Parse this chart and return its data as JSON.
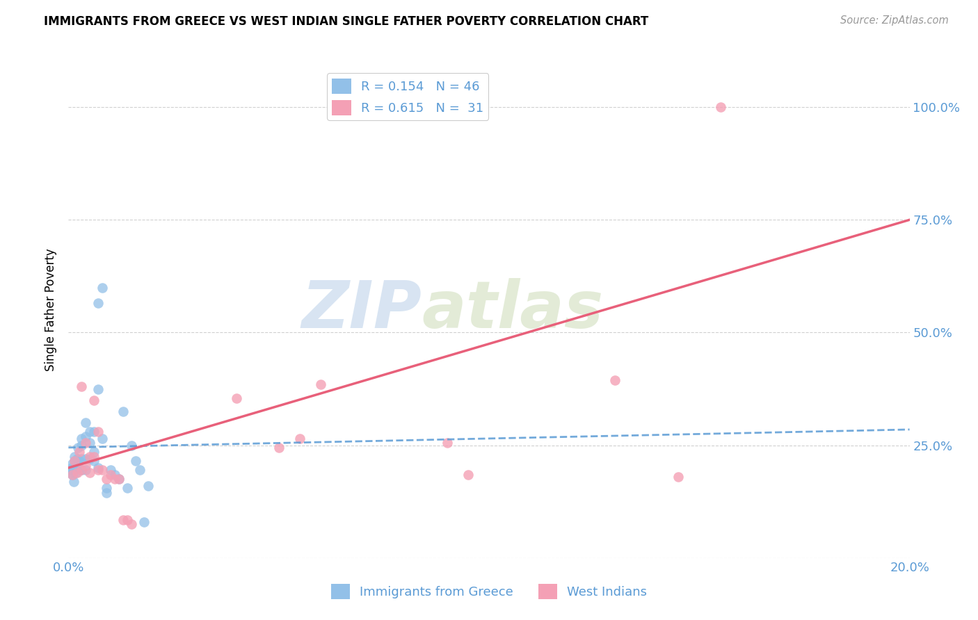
{
  "title": "IMMIGRANTS FROM GREECE VS WEST INDIAN SINGLE FATHER POVERTY CORRELATION CHART",
  "source": "Source: ZipAtlas.com",
  "ylabel": "Single Father Poverty",
  "legend_label1": "Immigrants from Greece",
  "legend_label2": "West Indians",
  "r1": 0.154,
  "n1": 46,
  "r2": 0.615,
  "n2": 31,
  "xlim": [
    0.0,
    0.2
  ],
  "ylim": [
    0.0,
    1.1
  ],
  "yticks": [
    0.0,
    0.25,
    0.5,
    0.75,
    1.0
  ],
  "ytick_labels": [
    "",
    "25.0%",
    "50.0%",
    "75.0%",
    "100.0%"
  ],
  "xticks": [
    0.0,
    0.05,
    0.1,
    0.15,
    0.2
  ],
  "xtick_labels": [
    "0.0%",
    "",
    "",
    "",
    "20.0%"
  ],
  "color_blue": "#92C0E8",
  "color_pink": "#F4A0B5",
  "color_line_blue": "#5B9BD5",
  "color_line_pink": "#E8607A",
  "color_axis_label": "#5B9BD5",
  "watermark_zip": "ZIP",
  "watermark_atlas": "atlas",
  "blue_points_x": [
    0.0005,
    0.0008,
    0.001,
    0.001,
    0.001,
    0.0012,
    0.0015,
    0.0015,
    0.0018,
    0.002,
    0.002,
    0.002,
    0.002,
    0.0022,
    0.0025,
    0.003,
    0.003,
    0.003,
    0.003,
    0.004,
    0.004,
    0.004,
    0.004,
    0.005,
    0.005,
    0.005,
    0.006,
    0.006,
    0.006,
    0.007,
    0.007,
    0.007,
    0.008,
    0.008,
    0.009,
    0.009,
    0.01,
    0.011,
    0.012,
    0.013,
    0.014,
    0.015,
    0.016,
    0.017,
    0.018,
    0.019
  ],
  "blue_points_y": [
    0.19,
    0.2,
    0.185,
    0.21,
    0.195,
    0.17,
    0.215,
    0.225,
    0.19,
    0.2,
    0.21,
    0.22,
    0.205,
    0.245,
    0.215,
    0.195,
    0.22,
    0.265,
    0.25,
    0.195,
    0.22,
    0.27,
    0.3,
    0.22,
    0.255,
    0.28,
    0.215,
    0.235,
    0.28,
    0.2,
    0.375,
    0.565,
    0.6,
    0.265,
    0.145,
    0.155,
    0.195,
    0.185,
    0.175,
    0.325,
    0.155,
    0.25,
    0.215,
    0.195,
    0.08,
    0.16
  ],
  "pink_points_x": [
    0.001,
    0.0015,
    0.002,
    0.0025,
    0.003,
    0.003,
    0.004,
    0.004,
    0.005,
    0.005,
    0.006,
    0.006,
    0.007,
    0.007,
    0.008,
    0.009,
    0.01,
    0.011,
    0.012,
    0.013,
    0.014,
    0.015,
    0.04,
    0.05,
    0.055,
    0.06,
    0.09,
    0.095,
    0.13,
    0.145,
    0.155
  ],
  "pink_points_y": [
    0.185,
    0.215,
    0.19,
    0.235,
    0.195,
    0.38,
    0.205,
    0.255,
    0.19,
    0.225,
    0.35,
    0.225,
    0.195,
    0.28,
    0.195,
    0.175,
    0.185,
    0.175,
    0.175,
    0.085,
    0.085,
    0.075,
    0.355,
    0.245,
    0.265,
    0.385,
    0.255,
    0.185,
    0.395,
    0.18,
    1.0
  ],
  "blue_line_x": [
    0.0,
    0.2
  ],
  "blue_line_y": [
    0.245,
    0.285
  ],
  "pink_line_x": [
    0.0,
    0.2
  ],
  "pink_line_y": [
    0.2,
    0.75
  ]
}
